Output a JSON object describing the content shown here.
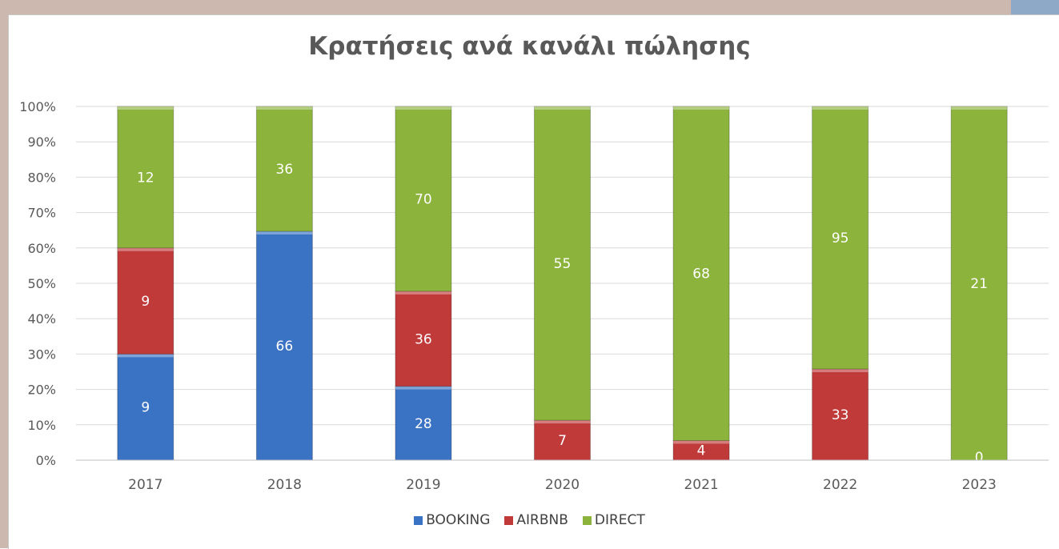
{
  "chart_data": {
    "type": "bar",
    "stacked": "percent",
    "title": "Κρατήσεις ανά κανάλι πώλησης",
    "categories": [
      "2017",
      "2018",
      "2019",
      "2020",
      "2021",
      "2022",
      "2023"
    ],
    "series": [
      {
        "name": "BOOKING",
        "color": "#3a72c4",
        "values": [
          9,
          66,
          28,
          0,
          0,
          0,
          0
        ],
        "labels": [
          "9",
          "66",
          "28",
          "",
          "",
          "",
          ""
        ]
      },
      {
        "name": "AIRBNB",
        "color": "#c03a3a",
        "values": [
          9,
          0,
          36,
          7,
          4,
          33,
          0
        ],
        "labels": [
          "9",
          "",
          "36",
          "7",
          "4",
          "33",
          ""
        ]
      },
      {
        "name": "DIRECT",
        "color": "#8cb43c",
        "values": [
          12,
          36,
          70,
          55,
          68,
          95,
          21
        ],
        "labels": [
          "12",
          "36",
          "70",
          "55",
          "68",
          "95",
          "21"
        ]
      }
    ],
    "extra_labels": [
      {
        "category": "2023",
        "text": "0"
      }
    ],
    "yticks": [
      "0%",
      "10%",
      "20%",
      "30%",
      "40%",
      "50%",
      "60%",
      "70%",
      "80%",
      "90%",
      "100%"
    ],
    "ylim": [
      0,
      100
    ],
    "grid": true,
    "legend_position": "bottom"
  }
}
